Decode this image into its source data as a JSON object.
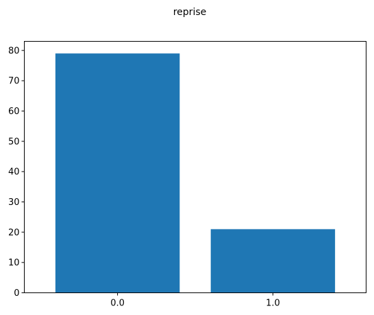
{
  "chart_data": {
    "type": "bar",
    "title": "reprise",
    "xlabel": "",
    "ylabel": "",
    "categories": [
      "0.0",
      "1.0"
    ],
    "values": [
      79,
      21
    ],
    "ylim": [
      0,
      83
    ],
    "yticks": [
      0,
      10,
      20,
      30,
      40,
      50,
      60,
      70,
      80
    ],
    "grid": false,
    "bar_color": "#1f77b4",
    "axis_color": "#000000"
  }
}
